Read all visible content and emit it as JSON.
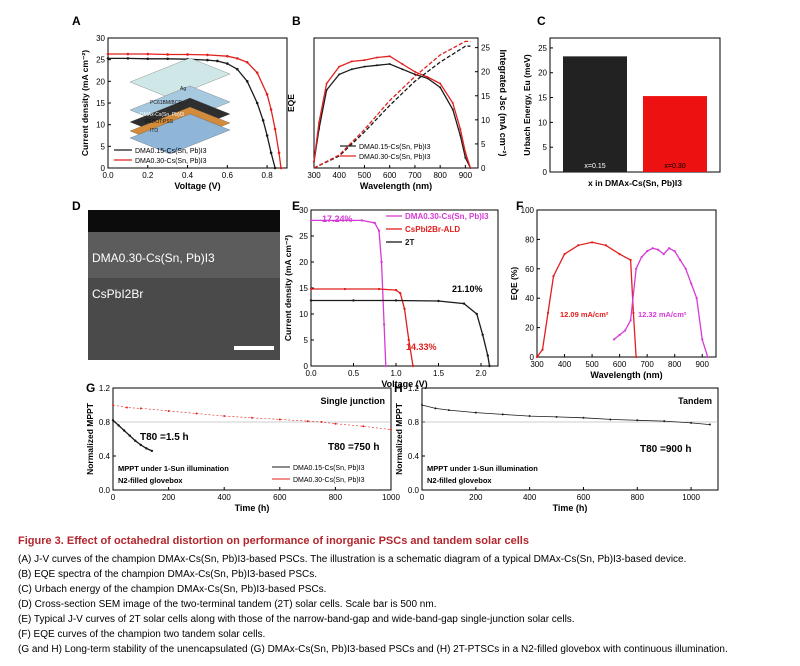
{
  "panel_labels": {
    "a": "A",
    "b": "B",
    "c": "C",
    "d": "D",
    "e": "E",
    "f": "F",
    "g": "G",
    "h": "H"
  },
  "colors": {
    "black": "#1a1a1a",
    "red": "#e0201e",
    "magenta": "#d63ad6",
    "caption_red": "#b3262d"
  },
  "caption": {
    "title": "Figure 3.  Effect of octahedral distortion on performance of inorganic PSCs and tandem solar cells",
    "lines": [
      "(A) J-V curves of the champion DMAx-Cs(Sn, Pb)I3-based PSCs. The illustration is a schematic diagram of a typical DMAx-Cs(Sn, Pb)I3-based device.",
      "(B) EQE spectra of the champion DMAx-Cs(Sn, Pb)I3-based PSCs.",
      "(C) Urbach energy of the champion DMAx-Cs(Sn, Pb)I3-based PSCs.",
      "(D) Cross-section SEM image of the two-terminal tandem (2T) solar cells. Scale bar is 500 nm.",
      "(E) Typical J-V curves of 2T solar cells along with those of the narrow-band-gap and wide-band-gap single-junction solar cells.",
      "(F) EQE curves of the champion two tandem solar cells.",
      "(G and H) Long-term stability of the unencapsulated (G) DMAx-Cs(Sn, Pb)I3-based PSCs and (H) 2T-PTSCs in a N2-filled glovebox with continuous illumination."
    ]
  },
  "panelA": {
    "xlabel": "Voltage (V)",
    "ylabel": "Current density (mA cm⁻²)",
    "xticks": [
      "0.0",
      "0.2",
      "0.4",
      "0.6",
      "0.8"
    ],
    "yticks": [
      "0",
      "5",
      "10",
      "15",
      "20",
      "25",
      "30"
    ],
    "legend": [
      "DMA0.15-Cs(Sn, Pb)I3",
      "DMA0.30-Cs(Sn, Pb)I3"
    ],
    "inset_layers": [
      "Ag",
      "PC61BM/BCP",
      "DMAx-Cs(Sn, Pb)I3",
      "PEDOT:PSS",
      "ITO"
    ]
  },
  "panelB": {
    "xlabel": "Wavelength (nm)",
    "ylabel": "EQE",
    "ylabel2": "Integrated Jsc (mA cm⁻²)",
    "xticks": [
      "300",
      "400",
      "500",
      "600",
      "700",
      "800",
      "900"
    ],
    "y2ticks": [
      "0",
      "5",
      "10",
      "15",
      "20",
      "25"
    ],
    "legend": [
      "DMA0.15-Cs(Sn, Pb)I3",
      "DMA0.30-Cs(Sn, Pb)I3"
    ]
  },
  "panelC": {
    "ylabel": "Urbach Energy, Eu (meV)",
    "xlabel": "x in DMAx-Cs(Sn, Pb)I3",
    "yticks": [
      "0",
      "5",
      "10",
      "15",
      "20",
      "25"
    ],
    "bar_labels": [
      "x=0.15",
      "x=0.30"
    ]
  },
  "panelD": {
    "label1": "DMA0.30-Cs(Sn, Pb)I3",
    "label2": "CsPbI2Br"
  },
  "panelE": {
    "xlabel": "Voltage (V)",
    "ylabel": "Current density (mA cm⁻²)",
    "xticks": [
      "0.0",
      "0.5",
      "1.0",
      "1.5",
      "2.0"
    ],
    "yticks": [
      "0",
      "5",
      "10",
      "15",
      "20",
      "25",
      "30"
    ],
    "legend": [
      "DMA0.30-Cs(Sn, Pb)I3",
      "CsPbI2Br-ALD",
      "2T"
    ],
    "annotations": [
      "17.24%",
      "21.10%",
      "14.33%"
    ]
  },
  "panelF": {
    "xlabel": "Wavelength (nm)",
    "ylabel": "EQE (%)",
    "xticks": [
      "300",
      "400",
      "500",
      "600",
      "700",
      "800",
      "900"
    ],
    "yticks": [
      "0",
      "20",
      "40",
      "60",
      "80",
      "100"
    ],
    "annotations": [
      "12.09 mA/cm²",
      "12.32 mA/cm²"
    ]
  },
  "panelG": {
    "title": "Single junction",
    "xlabel": "Time (h)",
    "ylabel": "Normalized MPPT",
    "xticks": [
      "0",
      "200",
      "400",
      "600",
      "800",
      "1000"
    ],
    "yticks": [
      "0.0",
      "0.4",
      "0.8",
      "1.2"
    ],
    "t80_a": "T80 =1.5 h",
    "t80_b": "T80 =750 h",
    "note1": "MPPT under 1-Sun illumination",
    "note2": "N2-filled glovebox",
    "legend": [
      "DMA0.15-Cs(Sn, Pb)I3",
      "DMA0.30-Cs(Sn, Pb)I3"
    ]
  },
  "panelH": {
    "title": "Tandem",
    "xlabel": "Time (h)",
    "ylabel": "Normalized MPPT",
    "xticks": [
      "0",
      "200",
      "400",
      "600",
      "800",
      "1000"
    ],
    "yticks": [
      "0.0",
      "0.4",
      "0.8",
      "1.2"
    ],
    "t80": "T80 =900 h",
    "note1": "MPPT under 1-Sun illumination",
    "note2": "N2-filled glovebox"
  },
  "chart_data": [
    {
      "panel": "A",
      "type": "line",
      "xlim": [
        0,
        0.9
      ],
      "ylim": [
        0,
        30
      ],
      "series": [
        {
          "name": "DMA0.15-Cs(Sn, Pb)I3",
          "x": [
            0,
            0.1,
            0.2,
            0.3,
            0.4,
            0.5,
            0.55,
            0.6,
            0.65,
            0.7,
            0.75,
            0.78,
            0.8,
            0.82,
            0.84
          ],
          "y": [
            25.3,
            25.3,
            25.2,
            25.2,
            25.1,
            24.9,
            24.7,
            24.1,
            22.8,
            20.0,
            15.0,
            11.0,
            7.5,
            3.5,
            0
          ]
        },
        {
          "name": "DMA0.30-Cs(Sn, Pb)I3",
          "x": [
            0,
            0.1,
            0.2,
            0.3,
            0.4,
            0.5,
            0.6,
            0.65,
            0.7,
            0.75,
            0.8,
            0.82,
            0.84,
            0.86,
            0.87
          ],
          "y": [
            26.3,
            26.3,
            26.3,
            26.2,
            26.2,
            26.1,
            25.8,
            25.3,
            24.4,
            22.0,
            17.0,
            13.5,
            9.0,
            3.5,
            0
          ]
        }
      ]
    },
    {
      "panel": "B",
      "type": "line",
      "xlim": [
        300,
        950
      ],
      "series": [
        {
          "name": "DMA0.15-Cs(Sn, Pb)I3",
          "x": [
            300,
            320,
            350,
            400,
            450,
            500,
            550,
            600,
            650,
            700,
            750,
            800,
            850,
            880,
            900,
            920
          ],
          "y": [
            0.05,
            0.3,
            0.6,
            0.72,
            0.76,
            0.78,
            0.79,
            0.8,
            0.76,
            0.72,
            0.69,
            0.62,
            0.45,
            0.25,
            0.08,
            0.0
          ]
        },
        {
          "name": "DMA0.30-Cs(Sn, Pb)I3",
          "x": [
            300,
            320,
            350,
            400,
            450,
            500,
            550,
            600,
            650,
            700,
            750,
            800,
            850,
            880,
            900,
            920
          ],
          "y": [
            0.05,
            0.35,
            0.65,
            0.78,
            0.82,
            0.83,
            0.85,
            0.86,
            0.8,
            0.74,
            0.7,
            0.65,
            0.5,
            0.3,
            0.12,
            0.0
          ]
        },
        {
          "name": "Integrated Jsc 0.15",
          "x": [
            300,
            400,
            500,
            600,
            700,
            800,
            900,
            920
          ],
          "y": [
            0,
            2.5,
            7.5,
            13,
            18,
            22,
            25.3,
            25.3
          ]
        },
        {
          "name": "Integrated Jsc 0.30",
          "x": [
            300,
            400,
            500,
            600,
            700,
            800,
            900,
            920
          ],
          "y": [
            0,
            2.7,
            8,
            14,
            19,
            23.5,
            26.3,
            26.3
          ]
        }
      ]
    },
    {
      "panel": "C",
      "type": "bar",
      "categories": [
        "x=0.15",
        "x=0.30"
      ],
      "values": [
        23.3,
        15.3
      ],
      "ylim": [
        0,
        27
      ]
    },
    {
      "panel": "E",
      "type": "line",
      "xlim": [
        0,
        2.2
      ],
      "ylim": [
        0,
        30
      ],
      "series": [
        {
          "name": "DMA0.30-Cs(Sn, Pb)I3",
          "x": [
            0,
            0.3,
            0.6,
            0.75,
            0.8,
            0.83,
            0.86,
            0.88
          ],
          "y": [
            28,
            28,
            28,
            27.5,
            26,
            20,
            8,
            0
          ]
        },
        {
          "name": "CsPbI2Br-ALD",
          "x": [
            0,
            0.4,
            0.8,
            1.0,
            1.05,
            1.1,
            1.15,
            1.2
          ],
          "y": [
            14.8,
            14.8,
            14.8,
            14.6,
            14,
            11,
            5,
            0
          ]
        },
        {
          "name": "2T",
          "x": [
            0,
            0.5,
            1.0,
            1.5,
            1.8,
            1.95,
            2.02,
            2.08,
            2.1
          ],
          "y": [
            12.6,
            12.6,
            12.6,
            12.5,
            12.0,
            10,
            6,
            2,
            0
          ]
        }
      ]
    },
    {
      "panel": "F",
      "type": "line",
      "xlim": [
        300,
        950
      ],
      "ylim": [
        0,
        100
      ],
      "series": [
        {
          "name": "red",
          "x": [
            300,
            320,
            340,
            360,
            400,
            450,
            500,
            550,
            600,
            640,
            650,
            660
          ],
          "y": [
            0,
            5,
            30,
            55,
            70,
            76,
            78,
            76,
            70,
            66,
            30,
            0
          ]
        },
        {
          "name": "magenta",
          "x": [
            580,
            600,
            620,
            640,
            660,
            680,
            700,
            720,
            740,
            760,
            780,
            800,
            820,
            840,
            860,
            880,
            900,
            920
          ],
          "y": [
            12,
            15,
            18,
            25,
            60,
            68,
            72,
            74,
            73,
            70,
            74,
            72,
            66,
            60,
            50,
            40,
            12,
            0
          ]
        }
      ]
    },
    {
      "panel": "G",
      "type": "line",
      "xlim": [
        0,
        1000
      ],
      "ylim": [
        0,
        1.2
      ],
      "series": [
        {
          "name": "DMA0.15-Cs(Sn, Pb)I3",
          "x": [
            0,
            20,
            40,
            60,
            80,
            100,
            120,
            140
          ],
          "y": [
            0.82,
            0.76,
            0.7,
            0.64,
            0.58,
            0.53,
            0.49,
            0.46
          ]
        },
        {
          "name": "DMA0.30-Cs(Sn, Pb)I3",
          "x": [
            0,
            50,
            100,
            200,
            300,
            400,
            500,
            600,
            700,
            750,
            800,
            900,
            1000
          ],
          "y": [
            1.0,
            0.97,
            0.96,
            0.93,
            0.9,
            0.87,
            0.85,
            0.83,
            0.81,
            0.8,
            0.78,
            0.75,
            0.71
          ]
        }
      ]
    },
    {
      "panel": "H",
      "type": "line",
      "xlim": [
        0,
        1100
      ],
      "ylim": [
        0,
        1.2
      ],
      "series": [
        {
          "name": "2T",
          "x": [
            0,
            50,
            100,
            200,
            300,
            400,
            500,
            600,
            700,
            800,
            900,
            1000,
            1070
          ],
          "y": [
            1.0,
            0.96,
            0.94,
            0.91,
            0.89,
            0.87,
            0.86,
            0.85,
            0.83,
            0.82,
            0.81,
            0.79,
            0.77
          ]
        }
      ]
    }
  ]
}
